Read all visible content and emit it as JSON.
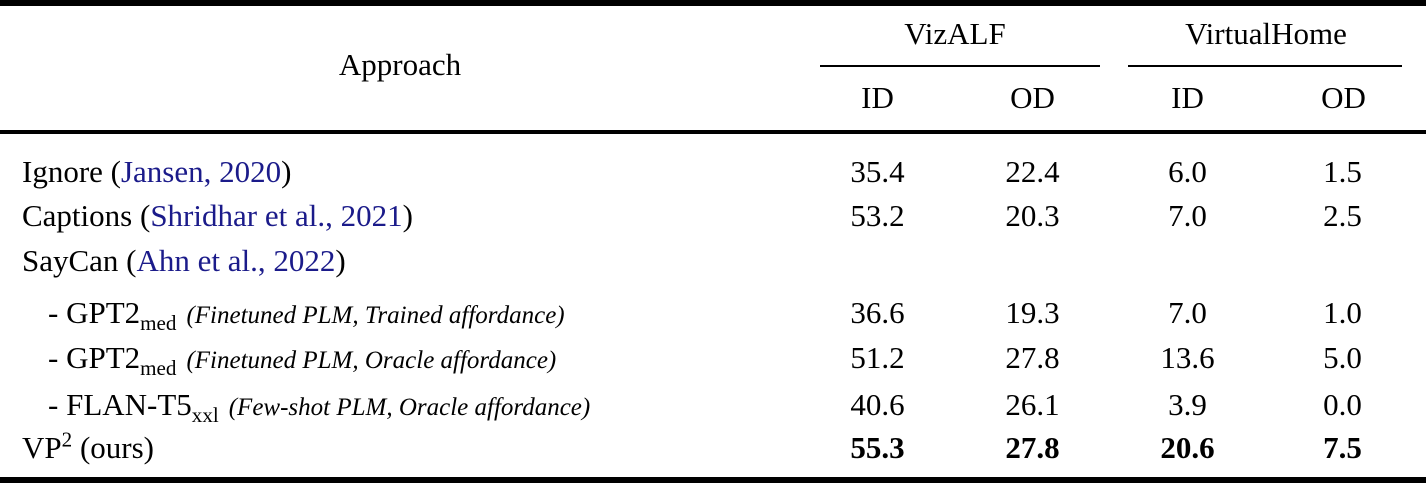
{
  "header": {
    "approach_label": "Approach",
    "groups": [
      {
        "label": "VizALF"
      },
      {
        "label": "VirtualHome"
      }
    ],
    "subcols": [
      "ID",
      "OD",
      "ID",
      "OD"
    ]
  },
  "rows": [
    {
      "pre": "Ignore (",
      "cite": "Jansen, 2020",
      "sub": "",
      "sup": "",
      "post": ")",
      "note": "",
      "values": [
        "35.4",
        "22.4",
        "6.0",
        "1.5"
      ]
    },
    {
      "pre": "Captions (",
      "cite": "Shridhar et al., 2021",
      "sub": "",
      "sup": "",
      "post": ")",
      "note": "",
      "values": [
        "53.2",
        "20.3",
        "7.0",
        "2.5"
      ]
    },
    {
      "pre": "SayCan (",
      "cite": "Ahn et al., 2022",
      "sub": "",
      "sup": "",
      "post": ")",
      "note": "",
      "values": [
        "",
        "",
        "",
        ""
      ]
    },
    {
      "pre": "- GPT2",
      "cite": "",
      "sub": "med",
      "sup": "",
      "post": "",
      "note": "(Finetuned PLM, Trained affordance)",
      "values": [
        "36.6",
        "19.3",
        "7.0",
        "1.0"
      ]
    },
    {
      "pre": "- GPT2",
      "cite": "",
      "sub": "med",
      "sup": "",
      "post": "",
      "note": "(Finetuned PLM, Oracle affordance)",
      "values": [
        "51.2",
        "27.8",
        "13.6",
        "5.0"
      ]
    },
    {
      "pre": "- FLAN-T5",
      "cite": "",
      "sub": "xxl",
      "sup": "",
      "post": "",
      "note": "(Few-shot PLM, Oracle affordance)",
      "values": [
        "40.6",
        "26.1",
        "3.9",
        "0.0"
      ]
    },
    {
      "pre": "VP",
      "cite": "",
      "sub": "",
      "sup": "2",
      "post": " (ours)",
      "note": "",
      "values": [
        "55.3",
        "27.8",
        "20.6",
        "7.5"
      ]
    }
  ],
  "colors": {
    "citation": "#1b1b8a",
    "text": "#000000",
    "rule": "#000000"
  }
}
